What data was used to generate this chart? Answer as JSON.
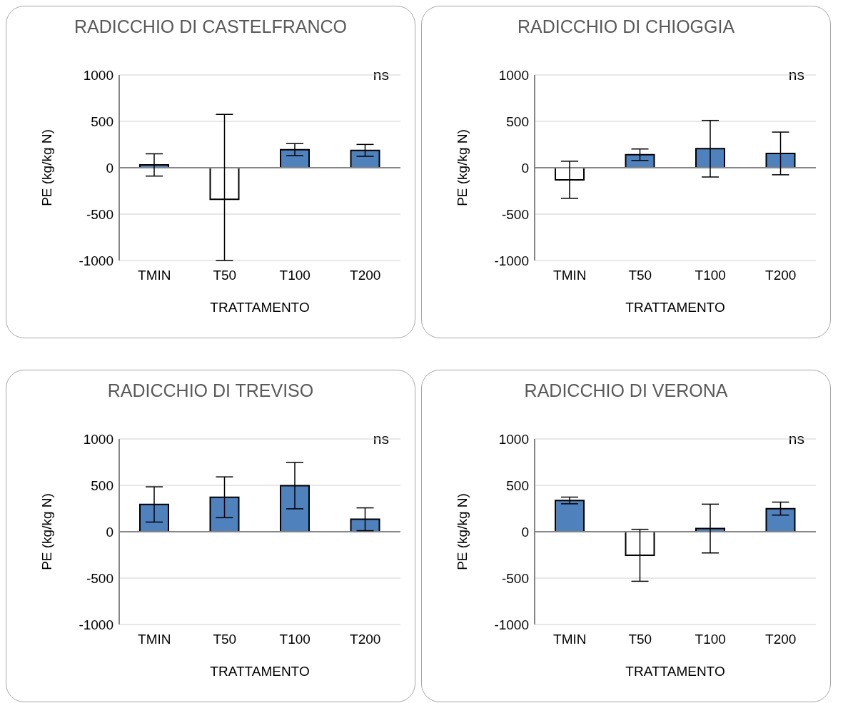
{
  "chart_data": [
    {
      "type": "bar",
      "title": "RADICCHIO DI CASTELFRANCO",
      "xlabel": "TRATTAMENTO",
      "ylabel": "PE (kg/kg N)",
      "categories": [
        "TMIN",
        "T50",
        "T100",
        "T200"
      ],
      "values": [
        30,
        -340,
        195,
        187
      ],
      "colors": [
        "#4f81bd",
        "#ffffff",
        "#4f81bd",
        "#4f81bd"
      ],
      "errors": [
        120,
        [
          -1000,
          575
        ],
        65,
        64
      ],
      "ylim": [
        -1000,
        1000
      ],
      "yticks": [
        -1000,
        -500,
        0,
        500,
        1000
      ],
      "grid": "y",
      "annotations": [
        "ns"
      ]
    },
    {
      "type": "bar",
      "title": "RADICCHIO DI CHIOGGIA",
      "xlabel": "TRATTAMENTO",
      "ylabel": "PE (kg/kg N)",
      "categories": [
        "TMIN",
        "T50",
        "T100",
        "T200"
      ],
      "values": [
        -130,
        140,
        205,
        154
      ],
      "colors": [
        "#ffffff",
        "#4f81bd",
        "#4f81bd",
        "#4f81bd"
      ],
      "errors": [
        200,
        62,
        305,
        230
      ],
      "ylim": [
        -1000,
        1000
      ],
      "yticks": [
        -1000,
        -500,
        0,
        500,
        1000
      ],
      "grid": "y",
      "annotations": [
        "ns"
      ]
    },
    {
      "type": "bar",
      "title": "RADICCHIO DI TREVISO",
      "xlabel": "TRATTAMENTO",
      "ylabel": "PE (kg/kg N)",
      "categories": [
        "TMIN",
        "T50",
        "T100",
        "T200"
      ],
      "values": [
        294,
        371,
        497,
        134
      ],
      "colors": [
        "#4f81bd",
        "#4f81bd",
        "#4f81bd",
        "#4f81bd"
      ],
      "errors": [
        190,
        220,
        250,
        123
      ],
      "ylim": [
        -1000,
        1000
      ],
      "yticks": [
        -1000,
        -500,
        0,
        500,
        1000
      ],
      "grid": "y",
      "annotations": [
        "ns"
      ]
    },
    {
      "type": "bar",
      "title": "RADICCHIO DI VERONA",
      "xlabel": "TRATTAMENTO",
      "ylabel": "PE (kg/kg N)",
      "categories": [
        "TMIN",
        "T50",
        "T100",
        "T200"
      ],
      "values": [
        337,
        -254,
        34,
        249
      ],
      "colors": [
        "#4f81bd",
        "#ffffff",
        "#4f81bd",
        "#4f81bd"
      ],
      "errors": [
        36,
        280,
        263,
        70
      ],
      "ylim": [
        -1000,
        1000
      ],
      "yticks": [
        -1000,
        -500,
        0,
        500,
        1000
      ],
      "grid": "y",
      "annotations": [
        "ns"
      ]
    }
  ]
}
